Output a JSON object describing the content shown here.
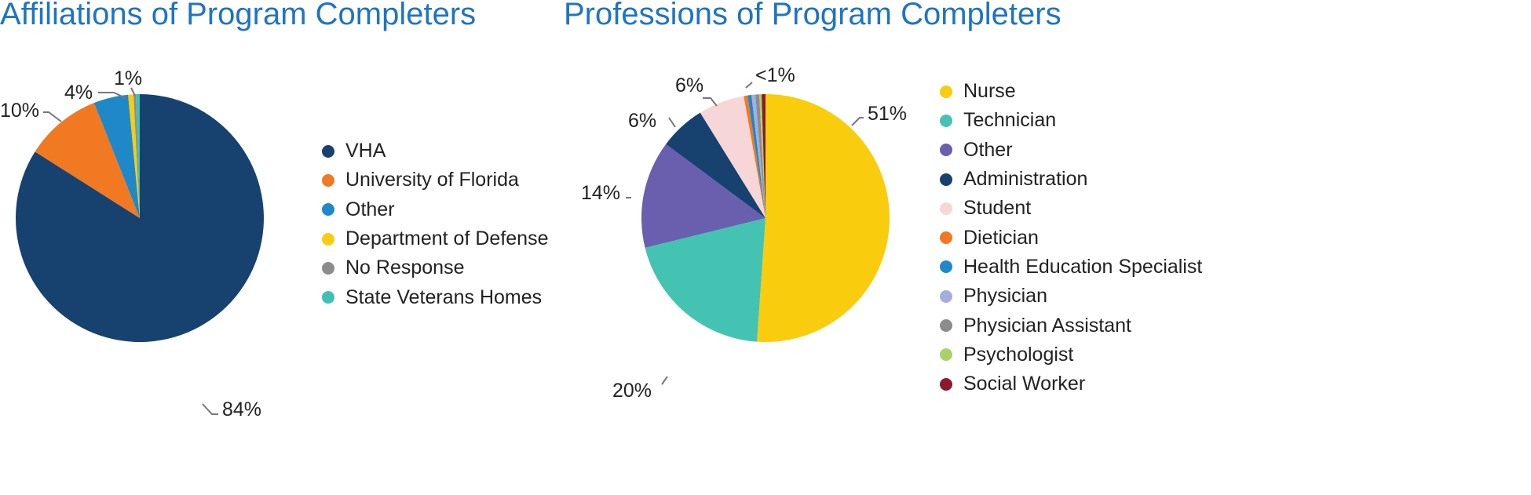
{
  "chart_data": [
    {
      "type": "pie",
      "title": "Affiliations of Program Completers",
      "start": "12 o'clock, clockwise",
      "legend_position": "right",
      "slices": [
        {
          "label": "VHA",
          "value": 84,
          "data_label": "84%",
          "color": "#17416f"
        },
        {
          "label": "University of Florida",
          "value": 10,
          "data_label": "10%",
          "color": "#f07922"
        },
        {
          "label": "Other",
          "value": 4.5,
          "data_label": "4%",
          "color": "#1f88c8"
        },
        {
          "label": "Department of Defense",
          "value": 0.7,
          "data_label": "1%",
          "color": "#f8cd0f"
        },
        {
          "label": "No Response",
          "value": 0.3,
          "data_label": "",
          "color": "#8c8c8c"
        },
        {
          "label": "State Veterans Homes",
          "value": 0.5,
          "data_label": "",
          "color": "#3fc0b4"
        }
      ]
    },
    {
      "type": "pie",
      "title": "Professions of Program Completers",
      "start": "12 o'clock, clockwise",
      "legend_position": "right",
      "slices": [
        {
          "label": "Nurse",
          "value": 51,
          "data_label": "51%",
          "color": "#f9cc0d"
        },
        {
          "label": "Technician",
          "value": 20,
          "data_label": "20%",
          "color": "#44c3b3"
        },
        {
          "label": "Other",
          "value": 14,
          "data_label": "14%",
          "color": "#6a5fae"
        },
        {
          "label": "Administration",
          "value": 6,
          "data_label": "6%",
          "color": "#17416f"
        },
        {
          "label": "Student",
          "value": 6,
          "data_label": "6%",
          "color": "#f7d6d8"
        },
        {
          "label": "Dietician",
          "value": 0.5,
          "data_label": "",
          "color": "#f07922"
        },
        {
          "label": "Health Education Specialist",
          "value": 0.5,
          "data_label": "",
          "color": "#1f88c8"
        },
        {
          "label": "Physician",
          "value": 0.5,
          "data_label": "",
          "color": "#a3aede"
        },
        {
          "label": "Physician Assistant",
          "value": 0.5,
          "data_label": "",
          "color": "#8c8c8c"
        },
        {
          "label": "Psychologist",
          "value": 0.3,
          "data_label": "",
          "color": "#a9d26a"
        },
        {
          "label": "Social Worker",
          "value": 0.5,
          "data_label": "<1%",
          "color": "#8b1a2c"
        }
      ]
    }
  ]
}
